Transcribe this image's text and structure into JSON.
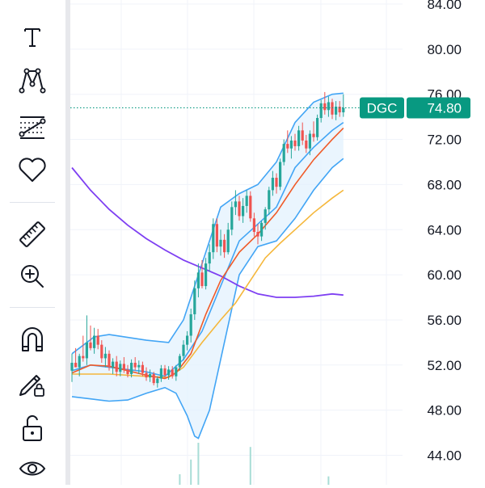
{
  "toolbar": {
    "tools": [
      {
        "name": "brush-tool",
        "icon": "brush-icon"
      },
      {
        "name": "text-tool",
        "icon": "text-icon"
      },
      {
        "name": "pattern-tool",
        "icon": "xabcd-pattern-icon"
      },
      {
        "name": "prediction-tool",
        "icon": "prediction-icon"
      },
      {
        "name": "favorites-tool",
        "icon": "heart-icon"
      },
      {
        "name": "measure-tool",
        "icon": "ruler-icon"
      },
      {
        "name": "zoom-tool",
        "icon": "zoom-in-icon"
      },
      {
        "name": "magnet-tool",
        "icon": "magnet-icon"
      },
      {
        "name": "lock-drawing-tool",
        "icon": "pencil-lock-icon"
      },
      {
        "name": "lock-all-tool",
        "icon": "unlock-icon"
      },
      {
        "name": "hide-tool",
        "icon": "eye-icon"
      }
    ]
  },
  "chart_data": {
    "type": "candlestick",
    "ticker": "DGC",
    "last_price": "74.80",
    "y_axis": {
      "ylim": [
        43.0,
        85.2
      ],
      "ticks": [
        "84.00",
        "80.00",
        "76.00",
        "72.00",
        "68.00",
        "64.00",
        "60.00",
        "56.00",
        "52.00",
        "48.00",
        "44.00"
      ]
    },
    "grid": true,
    "colors": {
      "up": "#26a69a",
      "down": "#ef5350",
      "band": "#42a5f5",
      "band_fill": "#e3f2fd",
      "ma_fast": "#f05a28",
      "ma_mid": "#f5b73b",
      "ma_slow": "#7e3ff2",
      "tag_bg": "#089981",
      "volume": "#a8ddd6"
    },
    "candles": [
      [
        51.5,
        53.0,
        50.5,
        52.2
      ],
      [
        52.2,
        53.5,
        51.8,
        51.8
      ],
      [
        51.8,
        53.0,
        51.0,
        52.8
      ],
      [
        52.8,
        54.6,
        52.3,
        52.6
      ],
      [
        52.6,
        56.4,
        52.0,
        54.0
      ],
      [
        54.0,
        55.5,
        53.3,
        53.5
      ],
      [
        53.5,
        55.3,
        53.0,
        54.6
      ],
      [
        54.6,
        55.2,
        53.4,
        53.8
      ],
      [
        53.8,
        54.2,
        52.2,
        52.6
      ],
      [
        52.6,
        53.6,
        51.8,
        53.0
      ],
      [
        53.0,
        53.3,
        51.5,
        51.8
      ],
      [
        51.8,
        52.6,
        51.2,
        52.3
      ],
      [
        52.3,
        52.8,
        51.0,
        51.4
      ],
      [
        51.4,
        52.4,
        51.0,
        52.1
      ],
      [
        52.1,
        52.7,
        51.3,
        51.6
      ],
      [
        51.6,
        52.0,
        50.9,
        51.2
      ],
      [
        51.2,
        52.5,
        50.9,
        52.2
      ],
      [
        52.2,
        52.7,
        51.5,
        51.8
      ],
      [
        51.8,
        52.4,
        51.2,
        52.0
      ],
      [
        52.0,
        52.3,
        51.0,
        51.3
      ],
      [
        51.3,
        51.8,
        50.6,
        50.9
      ],
      [
        50.9,
        51.6,
        50.5,
        51.2
      ],
      [
        51.2,
        51.4,
        50.2,
        50.4
      ],
      [
        50.4,
        51.0,
        50.0,
        50.8
      ],
      [
        50.8,
        52.0,
        50.5,
        51.7
      ],
      [
        51.7,
        52.0,
        50.8,
        51.1
      ],
      [
        51.1,
        51.9,
        50.7,
        51.6
      ],
      [
        51.6,
        51.9,
        50.8,
        51.0
      ],
      [
        51.0,
        52.0,
        50.6,
        51.8
      ],
      [
        51.8,
        53.0,
        51.5,
        52.8
      ],
      [
        52.8,
        54.2,
        52.4,
        53.8
      ],
      [
        53.8,
        55.0,
        53.3,
        54.6
      ],
      [
        54.6,
        57.0,
        54.0,
        56.5
      ],
      [
        56.5,
        59.5,
        56.0,
        58.8
      ],
      [
        58.8,
        61.0,
        58.0,
        60.2
      ],
      [
        60.2,
        61.3,
        58.8,
        59.0
      ],
      [
        59.0,
        61.5,
        58.7,
        61.0
      ],
      [
        61.0,
        62.7,
        60.3,
        62.0
      ],
      [
        62.0,
        65.0,
        61.4,
        64.5
      ],
      [
        64.5,
        65.0,
        62.0,
        62.5
      ],
      [
        62.5,
        64.0,
        61.7,
        63.1
      ],
      [
        63.1,
        63.6,
        61.5,
        62.0
      ],
      [
        62.0,
        64.6,
        61.8,
        64.0
      ],
      [
        64.0,
        66.5,
        63.5,
        66.0
      ],
      [
        66.0,
        67.5,
        65.3,
        66.5
      ],
      [
        66.5,
        67.0,
        64.8,
        65.2
      ],
      [
        65.2,
        66.8,
        64.6,
        66.1
      ],
      [
        66.1,
        67.5,
        65.5,
        67.0
      ],
      [
        67.0,
        67.4,
        64.7,
        65.0
      ],
      [
        65.0,
        65.5,
        63.4,
        63.8
      ],
      [
        63.8,
        64.5,
        62.7,
        63.4
      ],
      [
        63.4,
        64.8,
        63.0,
        64.6
      ],
      [
        64.6,
        66.0,
        64.0,
        65.8
      ],
      [
        65.8,
        67.8,
        65.3,
        67.5
      ],
      [
        67.5,
        69.2,
        67.0,
        68.6
      ],
      [
        68.6,
        69.0,
        67.2,
        67.8
      ],
      [
        67.8,
        70.3,
        67.5,
        70.0
      ],
      [
        70.0,
        72.0,
        69.7,
        71.6
      ],
      [
        71.6,
        72.8,
        70.8,
        71.2
      ],
      [
        71.2,
        72.3,
        70.3,
        71.9
      ],
      [
        71.9,
        72.5,
        71.0,
        71.4
      ],
      [
        71.4,
        73.2,
        71.0,
        72.8
      ],
      [
        72.8,
        73.5,
        71.5,
        71.9
      ],
      [
        71.9,
        72.4,
        70.8,
        71.2
      ],
      [
        71.2,
        72.8,
        70.6,
        72.5
      ],
      [
        72.5,
        73.6,
        71.8,
        72.2
      ],
      [
        72.2,
        74.2,
        71.9,
        73.9
      ],
      [
        73.9,
        75.5,
        73.5,
        75.2
      ],
      [
        75.2,
        76.2,
        74.2,
        74.6
      ],
      [
        74.6,
        75.8,
        74.0,
        75.3
      ],
      [
        75.3,
        75.6,
        73.8,
        74.2
      ],
      [
        74.2,
        75.4,
        73.7,
        74.9
      ],
      [
        74.9,
        75.4,
        74.0,
        74.4
      ],
      [
        74.4,
        76.0,
        74.0,
        74.8
      ]
    ],
    "bollinger_upper": [
      [
        0,
        53.0
      ],
      [
        6,
        54.5
      ],
      [
        10,
        54.7
      ],
      [
        20,
        54.2
      ],
      [
        26,
        54.0
      ],
      [
        30,
        56.0
      ],
      [
        35,
        61.0
      ],
      [
        40,
        66.0
      ],
      [
        45,
        67.2
      ],
      [
        50,
        68.0
      ],
      [
        55,
        70.0
      ],
      [
        60,
        73.5
      ],
      [
        65,
        75.3
      ],
      [
        70,
        76.0
      ],
      [
        73,
        76.1
      ]
    ],
    "bollinger_lower": [
      [
        0,
        49.2
      ],
      [
        5,
        49.0
      ],
      [
        10,
        48.8
      ],
      [
        15,
        48.9
      ],
      [
        20,
        49.5
      ],
      [
        25,
        50.0
      ],
      [
        28,
        49.5
      ],
      [
        31,
        47.5
      ],
      [
        33,
        45.7
      ],
      [
        34,
        45.5
      ],
      [
        37,
        48.0
      ],
      [
        40,
        52.5
      ],
      [
        45,
        60.0
      ],
      [
        50,
        62.5
      ],
      [
        55,
        63.0
      ],
      [
        60,
        65.0
      ],
      [
        65,
        67.5
      ],
      [
        70,
        69.5
      ],
      [
        73,
        70.3
      ]
    ],
    "bollinger_basis": [
      [
        0,
        51.5
      ],
      [
        5,
        52.0
      ],
      [
        10,
        51.8
      ],
      [
        20,
        51.4
      ],
      [
        25,
        51.0
      ],
      [
        30,
        52.5
      ],
      [
        35,
        55.0
      ],
      [
        40,
        59.0
      ],
      [
        45,
        63.0
      ],
      [
        50,
        64.5
      ],
      [
        55,
        66.0
      ],
      [
        60,
        69.5
      ],
      [
        65,
        71.3
      ],
      [
        70,
        72.8
      ],
      [
        73,
        73.5
      ]
    ],
    "ma_fast": [
      [
        0,
        51.3
      ],
      [
        5,
        52.0
      ],
      [
        10,
        51.9
      ],
      [
        15,
        51.5
      ],
      [
        20,
        51.1
      ],
      [
        25,
        50.8
      ],
      [
        28,
        51.3
      ],
      [
        32,
        53.0
      ],
      [
        36,
        56.5
      ],
      [
        40,
        59.5
      ],
      [
        45,
        62.0
      ],
      [
        50,
        63.6
      ],
      [
        55,
        65.5
      ],
      [
        60,
        68.0
      ],
      [
        65,
        70.2
      ],
      [
        70,
        72.0
      ],
      [
        73,
        73.0
      ]
    ],
    "ma_mid": [
      [
        0,
        51.2
      ],
      [
        10,
        51.2
      ],
      [
        20,
        51.0
      ],
      [
        26,
        50.9
      ],
      [
        30,
        51.8
      ],
      [
        35,
        54.0
      ],
      [
        40,
        56.0
      ],
      [
        44,
        57.5
      ],
      [
        48,
        59.5
      ],
      [
        52,
        61.5
      ],
      [
        56,
        62.8
      ],
      [
        60,
        64.0
      ],
      [
        65,
        65.5
      ],
      [
        70,
        66.8
      ],
      [
        73,
        67.5
      ]
    ],
    "ma_slow": [
      [
        0,
        69.5
      ],
      [
        5,
        67.5
      ],
      [
        10,
        65.8
      ],
      [
        15,
        64.4
      ],
      [
        20,
        63.2
      ],
      [
        25,
        62.2
      ],
      [
        30,
        61.3
      ],
      [
        35,
        60.6
      ],
      [
        40,
        59.9
      ],
      [
        45,
        59.0
      ],
      [
        50,
        58.3
      ],
      [
        55,
        58.0
      ],
      [
        60,
        58.0
      ],
      [
        65,
        58.1
      ],
      [
        70,
        58.3
      ],
      [
        73,
        58.2
      ]
    ],
    "volume": [
      [
        29,
        0.25
      ],
      [
        32,
        0.6
      ],
      [
        34,
        1.0
      ],
      [
        48,
        0.9
      ],
      [
        69,
        0.2
      ]
    ]
  }
}
